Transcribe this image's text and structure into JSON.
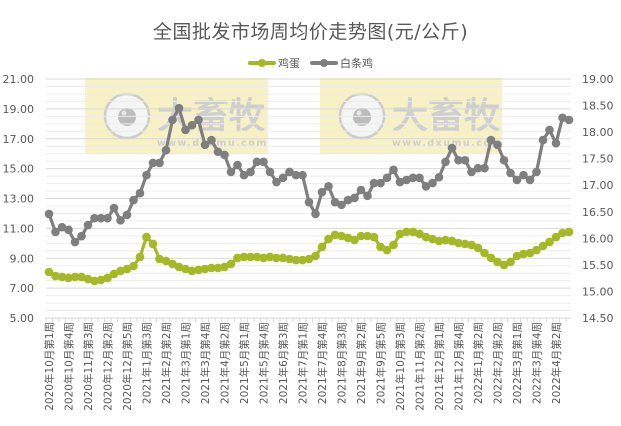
{
  "chart_data": {
    "type": "line",
    "title": "全国批发市场周均价走势图(元/公斤)",
    "xlabel": "",
    "ylabel": "",
    "ylabel_right": "",
    "legend_position": "top",
    "grid": true,
    "ylim": [
      5,
      21
    ],
    "ylim_right": [
      14.5,
      19
    ],
    "yticks": [
      "5.00",
      "7.00",
      "9.00",
      "11.00",
      "13.00",
      "15.00",
      "17.00",
      "19.00",
      "21.00"
    ],
    "yticks_right": [
      "14.50",
      "15.00",
      "15.50",
      "16.00",
      "16.50",
      "17.00",
      "17.50",
      "18.00",
      "18.50",
      "19.00"
    ],
    "x_tick_labels": [
      "2020年10月第1周",
      "2020年10月第4周",
      "2020年11月第3周",
      "2020年12月第2周",
      "2020年12月第5周",
      "2021年1月第3周",
      "2021年2月第2周",
      "2021年3月第1周",
      "2021年3月第4周",
      "2021年4月第2周",
      "2021年5月第1周",
      "2021年5月第4周",
      "2021年6月第3周",
      "2021年7月第1周",
      "2021年7月第4周",
      "2021年8月第3周",
      "2021年9月第2周",
      "2021年9月第5周",
      "2021年10月第3周",
      "2021年11月第2周",
      "2021年12月第1周",
      "2021年12月第4周",
      "2022年1月第2周",
      "2022年2月第2周",
      "2022年3月第1周",
      "2022年3月第4周",
      "2022年4月第2周"
    ],
    "x_tick_every": 3,
    "series": [
      {
        "name": "鸡蛋",
        "axis": "left",
        "color": "#A5B826",
        "values": [
          8.08,
          7.81,
          7.75,
          7.68,
          7.75,
          7.75,
          7.61,
          7.48,
          7.55,
          7.68,
          7.95,
          8.15,
          8.28,
          8.48,
          9.09,
          10.42,
          9.96,
          8.95,
          8.82,
          8.62,
          8.42,
          8.28,
          8.15,
          8.22,
          8.28,
          8.35,
          8.35,
          8.42,
          8.62,
          9.02,
          9.09,
          9.09,
          9.09,
          9.02,
          9.09,
          9.02,
          9.02,
          8.95,
          8.88,
          8.88,
          8.95,
          9.15,
          9.76,
          10.29,
          10.56,
          10.49,
          10.36,
          10.22,
          10.49,
          10.49,
          10.42,
          9.76,
          9.55,
          9.89,
          10.63,
          10.76,
          10.76,
          10.63,
          10.42,
          10.29,
          10.16,
          10.22,
          10.16,
          10.02,
          9.96,
          9.89,
          9.69,
          9.35,
          9.02,
          8.75,
          8.55,
          8.75,
          9.15,
          9.29,
          9.35,
          9.55,
          9.82,
          10.09,
          10.42,
          10.69,
          10.76
        ]
      },
      {
        "name": "白条鸡",
        "axis": "right",
        "color": "#7F7F7F",
        "values": [
          16.46,
          16.12,
          16.21,
          16.16,
          15.93,
          16.04,
          16.25,
          16.38,
          16.38,
          16.38,
          16.57,
          16.34,
          16.44,
          16.72,
          16.85,
          17.19,
          17.42,
          17.42,
          17.66,
          18.23,
          18.45,
          18.04,
          18.13,
          18.23,
          17.76,
          17.85,
          17.63,
          17.57,
          17.25,
          17.38,
          17.19,
          17.25,
          17.44,
          17.44,
          17.25,
          17.06,
          17.14,
          17.25,
          17.19,
          17.19,
          16.68,
          16.46,
          16.87,
          16.98,
          16.68,
          16.63,
          16.72,
          16.76,
          16.91,
          16.8,
          17.04,
          17.04,
          17.14,
          17.29,
          17.06,
          17.1,
          17.14,
          17.14,
          16.98,
          17.04,
          17.15,
          17.44,
          17.7,
          17.47,
          17.47,
          17.25,
          17.32,
          17.32,
          17.85,
          17.76,
          17.47,
          17.23,
          17.1,
          17.19,
          17.1,
          17.25,
          17.85,
          18.04,
          17.79,
          18.27,
          18.23
        ]
      }
    ]
  },
  "watermark": {
    "text": "大畜牧",
    "url_text": "www.dxumu.com",
    "fill": "#F5EDB0"
  }
}
